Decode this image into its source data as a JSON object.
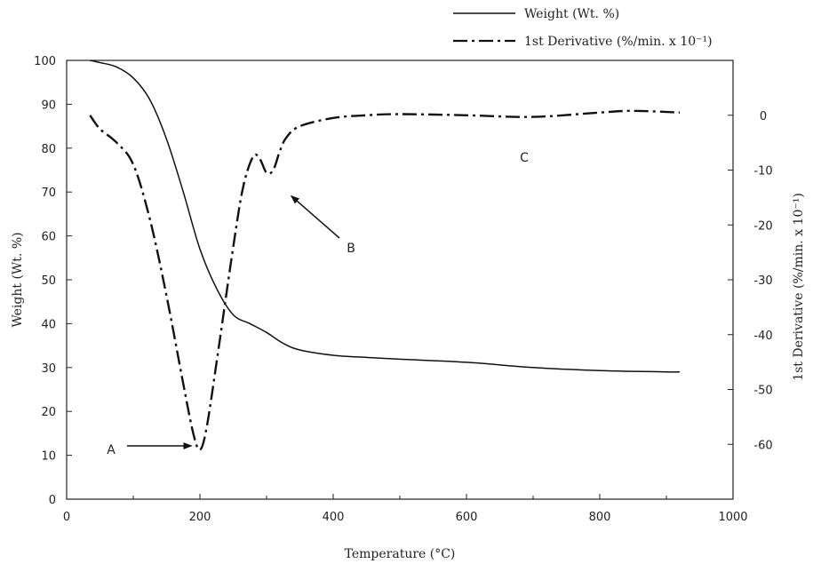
{
  "chart_data": {
    "type": "line",
    "xlabel": "Temperature (°C)",
    "ylabel": "Weight (Wt. %)",
    "y2label": "1st Derivative (%/min. x 10⁻¹)",
    "xlim": [
      0,
      1000
    ],
    "ylim": [
      0,
      100
    ],
    "y2lim": [
      -70,
      10
    ],
    "xticks": [
      0,
      200,
      400,
      600,
      800,
      1000
    ],
    "yticks": [
      0,
      10,
      20,
      30,
      40,
      50,
      60,
      70,
      80,
      90,
      100
    ],
    "y2ticks": [
      0,
      -10,
      -20,
      -30,
      -40,
      -50,
      -60
    ],
    "grid": false,
    "legend_position": "top-right",
    "series": [
      {
        "name": "Weight (Wt. %)",
        "axis": "left",
        "line_style": "solid",
        "x": [
          35,
          50,
          75,
          100,
          125,
          150,
          175,
          200,
          225,
          250,
          275,
          300,
          325,
          350,
          400,
          450,
          500,
          600,
          700,
          800,
          900,
          920
        ],
        "y": [
          100,
          99.5,
          98.5,
          96,
          91,
          82,
          70,
          57,
          48,
          42,
          40,
          38,
          35.5,
          34,
          32.8,
          32.3,
          31.9,
          31.2,
          30,
          29.3,
          29,
          29
        ]
      },
      {
        "name": "1st Derivative (%/min. x 10⁻¹)",
        "axis": "right",
        "line_style": "dashdot",
        "x": [
          35,
          50,
          75,
          100,
          125,
          150,
          175,
          190,
          200,
          210,
          225,
          250,
          265,
          280,
          290,
          300,
          310,
          320,
          330,
          350,
          400,
          450,
          500,
          600,
          700,
          800,
          850,
          920
        ],
        "y": [
          0,
          -2.5,
          -5,
          -9,
          -19,
          -33,
          -49,
          -58,
          -61,
          -57,
          -45,
          -24,
          -13,
          -7.5,
          -8,
          -10.5,
          -10,
          -6.5,
          -4,
          -2,
          -0.5,
          0,
          0.2,
          0,
          -0.3,
          0.5,
          0.8,
          0.5
        ]
      }
    ],
    "annotations": [
      {
        "label": "A",
        "arrow_to": [
          198,
          -61
        ]
      },
      {
        "label": "B",
        "arrow_to": [
          337,
          -10.5
        ]
      },
      {
        "label": "C"
      }
    ]
  }
}
